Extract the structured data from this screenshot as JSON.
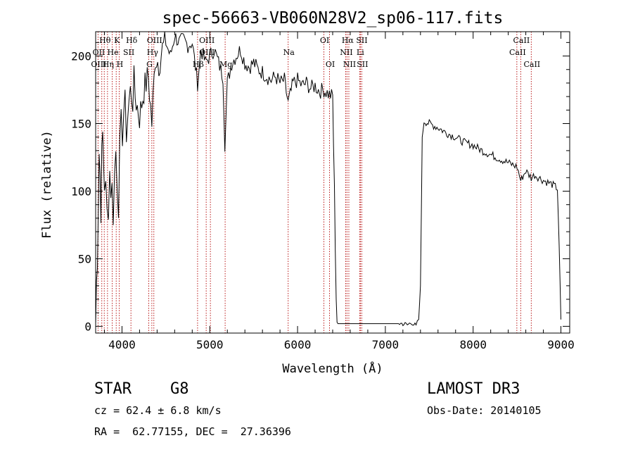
{
  "chart_data": {
    "type": "line",
    "title": "spec-56663-VB060N28V2_sp06-117.fits",
    "xlabel": "Wavelength (Å)",
    "ylabel": "Flux (relative)",
    "xlim": [
      3700,
      9100
    ],
    "ylim": [
      -5,
      218
    ],
    "x_ticks": [
      4000,
      5000,
      6000,
      7000,
      8000,
      9000
    ],
    "y_ticks": [
      0,
      50,
      100,
      150,
      200
    ],
    "series": [
      {
        "name": "spectrum",
        "color": "#000000",
        "x": [
          3700,
          3720,
          3740,
          3760,
          3780,
          3800,
          3830,
          3860,
          3900,
          3930,
          3960,
          3990,
          4020,
          4050,
          4080,
          4110,
          4150,
          4200,
          4250,
          4300,
          4340,
          4380,
          4420,
          4460,
          4500,
          4550,
          4600,
          4650,
          4700,
          4750,
          4800,
          4861,
          4900,
          4950,
          5000,
          5050,
          5100,
          5150,
          5172,
          5200,
          5250,
          5300,
          5350,
          5400,
          5450,
          5500,
          5550,
          5600,
          5650,
          5700,
          5750,
          5800,
          5850,
          5893,
          5950,
          6000,
          6050,
          6100,
          6150,
          6200,
          6250,
          6300,
          6350,
          6400,
          6420,
          6440,
          6450,
          6460,
          6470,
          6480,
          6500,
          6600,
          6800,
          7000,
          7150,
          7200,
          7250,
          7300,
          7350,
          7380,
          7400,
          7420,
          7440,
          7500,
          7600,
          7700,
          7800,
          7900,
          8000,
          8100,
          8200,
          8300,
          8400,
          8500,
          8542,
          8600,
          8662,
          8700,
          8800,
          8900,
          8960,
          8980,
          9000
        ],
        "values": [
          2,
          60,
          130,
          95,
          140,
          110,
          80,
          115,
          90,
          130,
          100,
          140,
          160,
          150,
          165,
          175,
          170,
          155,
          175,
          185,
          150,
          200,
          195,
          205,
          210,
          200,
          215,
          210,
          212,
          208,
          210,
          180,
          205,
          195,
          200,
          205,
          195,
          185,
          135,
          180,
          195,
          200,
          205,
          195,
          192,
          195,
          190,
          188,
          185,
          182,
          185,
          180,
          182,
          165,
          180,
          182,
          178,
          180,
          176,
          178,
          174,
          175,
          172,
          170,
          100,
          20,
          3,
          2,
          2,
          2,
          2,
          2,
          2,
          2,
          2,
          2,
          1,
          3,
          0,
          5,
          30,
          140,
          152,
          150,
          147,
          143,
          140,
          136,
          134,
          130,
          127,
          124,
          121,
          118,
          108,
          115,
          110,
          112,
          108,
          105,
          102,
          60,
          5
        ]
      }
    ],
    "spectral_lines": [
      {
        "label": "Hθ",
        "wavelength": 3798,
        "row": 1
      },
      {
        "label": "OII",
        "wavelength": 3727,
        "row": 2
      },
      {
        "label": "OIII",
        "wavelength": 3727,
        "row": 3
      },
      {
        "label": "He",
        "wavelength": 3889,
        "row": 2
      },
      {
        "label": "Hη",
        "wavelength": 3835,
        "row": 3
      },
      {
        "label": "K",
        "wavelength": 3934,
        "row": 1
      },
      {
        "label": "SII",
        "wavelength": 4069,
        "row": 2
      },
      {
        "label": "H",
        "wavelength": 3968,
        "row": 3
      },
      {
        "label": "Hδ",
        "wavelength": 4102,
        "row": 1
      },
      {
        "label": "OIII",
        "wavelength": 4363,
        "row": 1
      },
      {
        "label": "Hγ",
        "wavelength": 4340,
        "row": 2
      },
      {
        "label": "G",
        "wavelength": 4305,
        "row": 3
      },
      {
        "label": "OIII",
        "wavelength": 4959,
        "row": 1
      },
      {
        "label": "OIII",
        "wavelength": 4959,
        "row": 2
      },
      {
        "label": "Hβ",
        "wavelength": 4861,
        "row": 3
      },
      {
        "label": "Mg",
        "wavelength": 5175,
        "row": 3
      },
      {
        "label": "Na",
        "wavelength": 5893,
        "row": 2
      },
      {
        "label": "OI",
        "wavelength": 6300,
        "row": 1
      },
      {
        "label": "OI",
        "wavelength": 6364,
        "row": 3
      },
      {
        "label": "Hα",
        "wavelength": 6563,
        "row": 1
      },
      {
        "label": "SII",
        "wavelength": 6724,
        "row": 1
      },
      {
        "label": "NII",
        "wavelength": 6548,
        "row": 2
      },
      {
        "label": "Li",
        "wavelength": 6707,
        "row": 2
      },
      {
        "label": "NII",
        "wavelength": 6584,
        "row": 3
      },
      {
        "label": "SII",
        "wavelength": 6731,
        "row": 3
      },
      {
        "label": "CaII",
        "wavelength": 8542,
        "row": 1
      },
      {
        "label": "CaII",
        "wavelength": 8498,
        "row": 2
      },
      {
        "label": "CaII",
        "wavelength": 8662,
        "row": 3
      }
    ],
    "line_markers": [
      3727,
      3770,
      3798,
      3835,
      3889,
      3934,
      3968,
      4102,
      4305,
      4340,
      4363,
      4861,
      4959,
      5007,
      5175,
      5893,
      6300,
      6364,
      6548,
      6563,
      6584,
      6707,
      6717,
      6731,
      8498,
      8542,
      8662
    ]
  },
  "info": {
    "object_class": "STAR",
    "subclass": "G8",
    "survey": "LAMOST DR3",
    "cz": "cz = 62.4 ± 6.8 km/s",
    "obs_date": "Obs-Date: 20140105",
    "coords": "RA =  62.77155, DEC =  27.36396"
  },
  "colors": {
    "spectrum": "#000000",
    "line_marker": "#b30000",
    "background": "#ffffff"
  }
}
